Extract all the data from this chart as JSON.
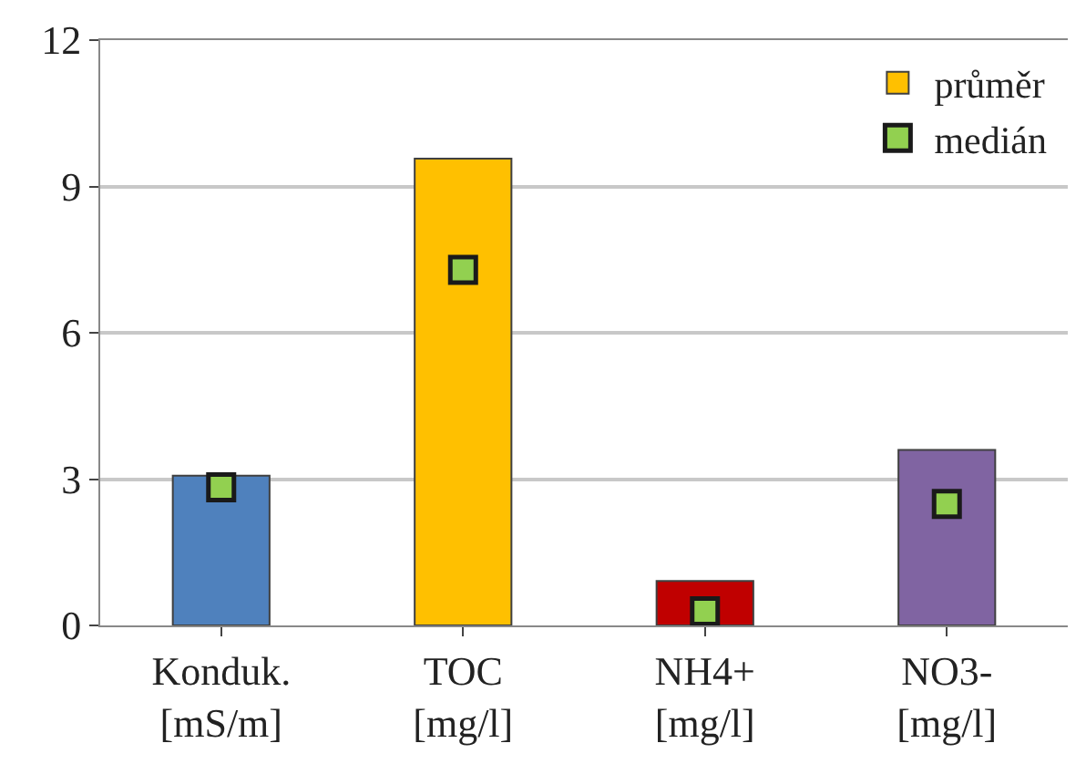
{
  "chart_data": {
    "type": "bar",
    "categories": [
      "Konduk.\n[mS/m]",
      "TOC\n[mg/l]",
      "NH4+\n[mg/l]",
      "NO3-\n[mg/l]"
    ],
    "series": [
      {
        "name": "průměr",
        "color": "#ffc000",
        "colors": [
          "#4f81bd",
          "#ffc000",
          "#c00000",
          "#8064a2"
        ],
        "values": [
          3.07,
          9.57,
          0.91,
          3.6
        ]
      },
      {
        "name": "medián",
        "type": "scatter",
        "color": "#92d050",
        "marker": "square",
        "values": [
          2.83,
          7.29,
          0.29,
          2.49
        ]
      }
    ],
    "ylim": [
      0,
      12
    ],
    "yticks": [
      0,
      3,
      6,
      9,
      12
    ],
    "grid": "y",
    "legend": "top right"
  }
}
